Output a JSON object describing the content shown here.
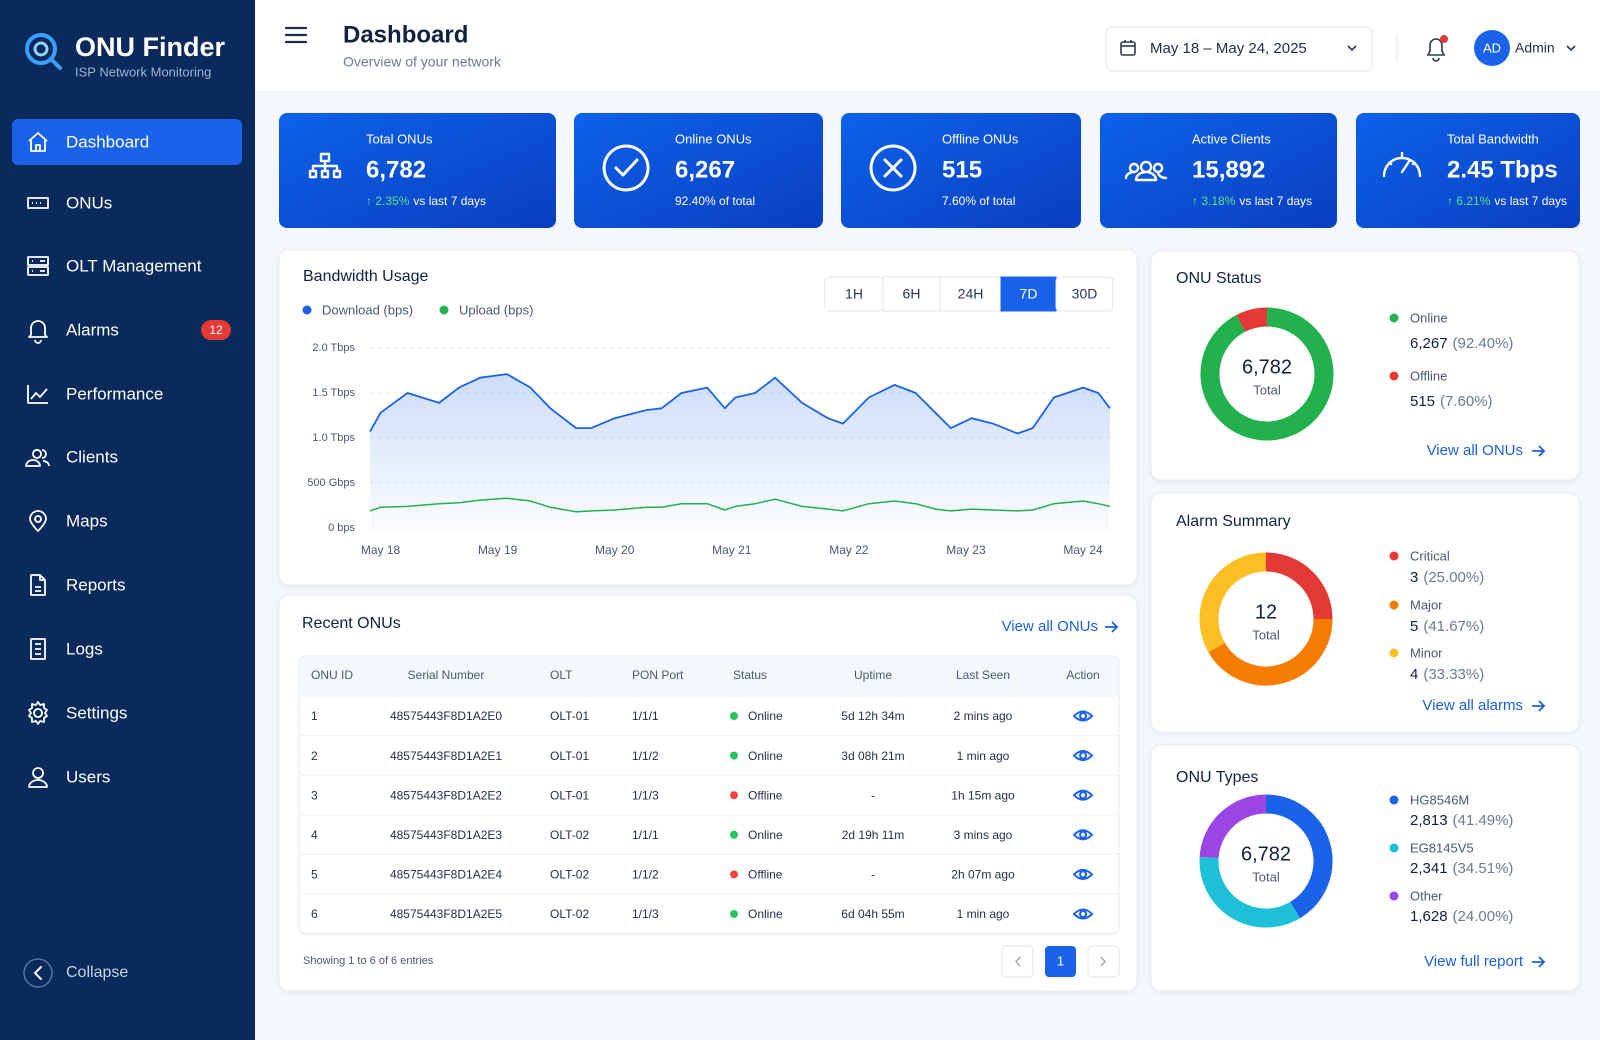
{
  "sidebar": {
    "brand": "ONU Finder",
    "tagline": "ISP Network Monitoring",
    "nav": [
      {
        "label": "Dashboard",
        "active": true
      },
      {
        "label": "ONUs"
      },
      {
        "label": "OLT Management"
      },
      {
        "label": "Alarms",
        "badge": "12"
      },
      {
        "label": "Performance"
      },
      {
        "label": "Clients"
      },
      {
        "label": "Maps"
      },
      {
        "label": "Reports"
      },
      {
        "label": "Logs"
      },
      {
        "label": "Settings"
      },
      {
        "label": "Users"
      }
    ],
    "collapse": "Collapse"
  },
  "header": {
    "title": "Dashboard",
    "subtitle": "Overview of your network",
    "date_range": "May 18 – May 24, 2025",
    "user_initials": "AD",
    "user_name": "Admin",
    "notifications_unread": true
  },
  "kpis": [
    {
      "title": "Total ONUs",
      "value": "6,782",
      "change": "↑ 2.35%",
      "note": "vs last 7 days"
    },
    {
      "title": "Online ONUs",
      "value": "6,267",
      "note": "92.40% of total"
    },
    {
      "title": "Offline ONUs",
      "value": "515",
      "note": "7.60% of total"
    },
    {
      "title": "Active Clients",
      "value": "15,892",
      "change": "↑ 3.18%",
      "note": "vs last 7 days"
    },
    {
      "title": "Total Bandwidth",
      "value": "2.45 Tbps",
      "change": "↑ 6.21%",
      "note": "vs last 7 days"
    }
  ],
  "table": {
    "title": "Recent ONUs",
    "link": "View all ONUs",
    "columns": [
      "ONU ID",
      "Serial Number",
      "OLT",
      "PON Port",
      "Status",
      "Uptime",
      "Last Seen",
      "Action"
    ],
    "rows": [
      [
        "1",
        "48575443F8D1A2E0",
        "OLT-01",
        "1/1/1",
        "Online",
        "5d 12h 34m",
        "2 mins ago"
      ],
      [
        "2",
        "48575443F8D1A2E1",
        "OLT-01",
        "1/1/2",
        "Online",
        "3d 08h 21m",
        "1 min ago"
      ],
      [
        "3",
        "48575443F8D1A2E2",
        "OLT-01",
        "1/1/3",
        "Offline",
        "-",
        "1h 15m ago"
      ],
      [
        "4",
        "48575443F8D1A2E3",
        "OLT-02",
        "1/1/1",
        "Online",
        "2d 19h 11m",
        "3 mins ago"
      ],
      [
        "5",
        "48575443F8D1A2E4",
        "OLT-02",
        "1/1/2",
        "Offline",
        "-",
        "2h 07m ago"
      ],
      [
        "6",
        "48575443F8D1A2E5",
        "OLT-02",
        "1/1/3",
        "Online",
        "6d 04h 55m",
        "1 min ago"
      ]
    ],
    "status_colors": {
      "Online": "#22c55e",
      "Offline": "#ef4444"
    },
    "footer": "Showing 1 to 6 of 6 entries",
    "page": "1"
  },
  "chart_data": [
    {
      "type": "line",
      "title": "Bandwidth Usage",
      "ranges": [
        {
          "label": "1H"
        },
        {
          "label": "6H"
        },
        {
          "label": "24H"
        },
        {
          "label": "7D",
          "active": true
        },
        {
          "label": "30D"
        }
      ],
      "x": [
        -0.09,
        0,
        0.23,
        0.5,
        0.67,
        0.85,
        1.08,
        1.28,
        1.45,
        1.67,
        1.8,
        2,
        2.27,
        2.4,
        2.57,
        2.79,
        2.94,
        3.03,
        3.2,
        3.37,
        3.6,
        3.82,
        3.95,
        4.17,
        4.39,
        4.57,
        4.74,
        4.87,
        5.05,
        5.23,
        5.44,
        5.57,
        5.75,
        6,
        6.13,
        6.23
      ],
      "series": [
        {
          "name": "Download (bps)",
          "color": "#1a63e8",
          "area": true,
          "values": [
            1.07,
            1.28,
            1.5,
            1.39,
            1.56,
            1.67,
            1.71,
            1.56,
            1.33,
            1.11,
            1.11,
            1.22,
            1.31,
            1.33,
            1.5,
            1.56,
            1.33,
            1.45,
            1.5,
            1.67,
            1.39,
            1.22,
            1.16,
            1.45,
            1.59,
            1.5,
            1.28,
            1.11,
            1.22,
            1.16,
            1.05,
            1.11,
            1.45,
            1.56,
            1.5,
            1.33
          ]
        },
        {
          "name": "Upload (bps)",
          "color": "#22b14c",
          "values": [
            0.19,
            0.23,
            0.24,
            0.27,
            0.28,
            0.31,
            0.33,
            0.3,
            0.23,
            0.18,
            0.19,
            0.2,
            0.23,
            0.23,
            0.27,
            0.27,
            0.2,
            0.24,
            0.27,
            0.32,
            0.24,
            0.21,
            0.19,
            0.27,
            0.3,
            0.27,
            0.21,
            0.19,
            0.21,
            0.2,
            0.19,
            0.2,
            0.27,
            0.3,
            0.27,
            0.24
          ]
        }
      ],
      "xlim": [
        -0.09,
        6.23
      ],
      "xticks": [
        {
          "value": 0,
          "label": "May 18"
        },
        {
          "value": 1,
          "label": "May 19"
        },
        {
          "value": 2,
          "label": "May 20"
        },
        {
          "value": 3,
          "label": "May 21"
        },
        {
          "value": 4,
          "label": "May 22"
        },
        {
          "value": 5,
          "label": "May 23"
        },
        {
          "value": 6,
          "label": "May 24"
        }
      ],
      "ylim": [
        0,
        2
      ],
      "yticks": [
        {
          "value": 0,
          "label": "0 bps"
        },
        {
          "value": 0.5,
          "label": "500 Gbps"
        },
        {
          "value": 1,
          "label": "1.0 Tbps"
        },
        {
          "value": 1.5,
          "label": "1.5 Tbps"
        },
        {
          "value": 2,
          "label": "2.0 Tbps"
        }
      ],
      "grid": true
    },
    {
      "type": "donut",
      "title": "ONU Status",
      "categories": [
        "Online",
        "Offline"
      ],
      "values": [
        6267,
        515
      ],
      "value_labels": [
        "6,267",
        "515"
      ],
      "percent_labels": [
        "(92.40%)",
        "(7.60%)"
      ],
      "colors": [
        "#22b14c",
        "#e53935"
      ],
      "center_label": "6,782",
      "center_sub": "Total",
      "link": "View all ONUs"
    },
    {
      "type": "donut",
      "title": "Alarm Summary",
      "categories": [
        "Critical",
        "Major",
        "Minor"
      ],
      "values": [
        3,
        5,
        4
      ],
      "percent_labels": [
        "(25.00%)",
        "(41.67%)",
        "(33.33%)"
      ],
      "colors": [
        "#e53935",
        "#f57c00",
        "#fbbf24"
      ],
      "center_label": "12",
      "center_sub": "Total",
      "link": "View all alarms"
    },
    {
      "type": "donut",
      "title": "ONU Types",
      "categories": [
        "HG8546M",
        "EG8145V5",
        "Other"
      ],
      "values": [
        2813,
        2341,
        1628
      ],
      "value_labels": [
        "2,813",
        "2,341",
        "1,628"
      ],
      "percent_labels": [
        "(41.49%)",
        "(34.51%)",
        "(24.00%)"
      ],
      "colors": [
        "#1a63e8",
        "#1ec0d8",
        "#9b45e4"
      ],
      "center_label": "6,782",
      "center_sub": "Total",
      "link": "View full report"
    }
  ]
}
